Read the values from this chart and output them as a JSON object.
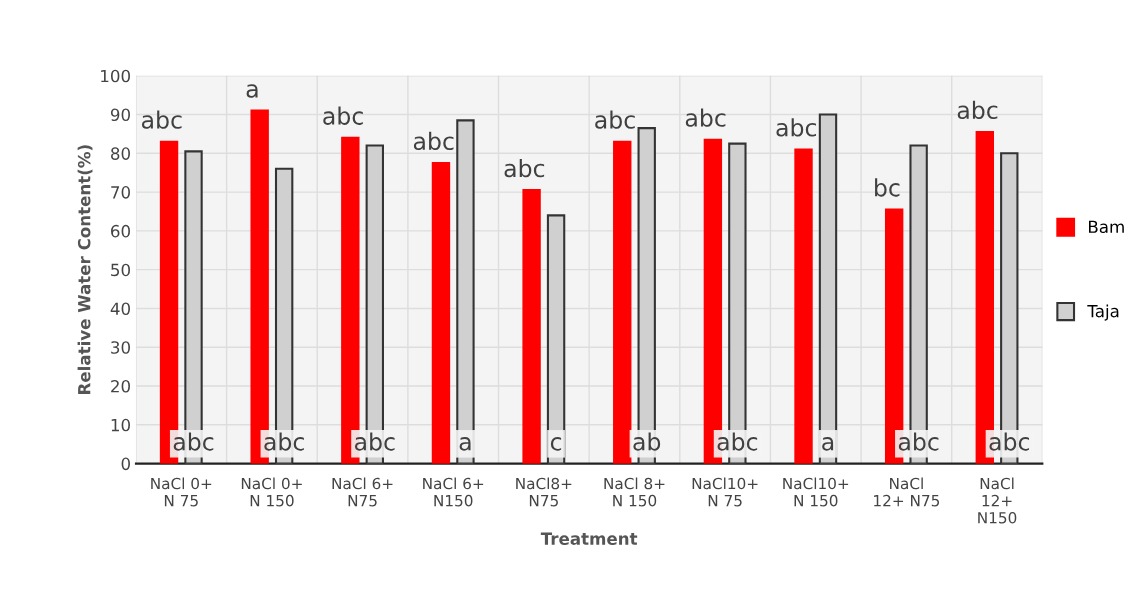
{
  "chart_data": {
    "type": "bar",
    "xlabel": "Treatment",
    "ylabel": "Relative Water Content(%)",
    "categories": [
      "NaCl 0+\nN 75",
      "NaCl 0+\nN 150",
      "NaCl 6+\nN75",
      "NaCl 6+\nN150",
      "NaCl8+\nN75",
      "NaCl 8+\nN 150",
      "NaCl10+\nN 75",
      "NaCl10+\nN 150",
      "NaCl\n12+ N75",
      "NaCl\n12+\nN150"
    ],
    "series": [
      {
        "name": "Bam",
        "color": "#ff0000",
        "values": [
          83,
          91,
          84,
          77.5,
          70.5,
          83,
          83.5,
          81,
          65.5,
          85.5
        ]
      },
      {
        "name": "Taja",
        "color": "#d0d0d0",
        "values": [
          80.5,
          76,
          82,
          88.5,
          64,
          86.5,
          82.5,
          90,
          82,
          80
        ]
      }
    ],
    "ylim": [
      0,
      100
    ],
    "yticks": [
      0,
      10,
      20,
      30,
      40,
      50,
      60,
      70,
      80,
      90,
      100
    ],
    "grid": true,
    "legend": "right",
    "annotations": [
      {
        "text": "abc",
        "x": "NaCl 0+\nN 75",
        "y": 83
      },
      {
        "text": "a",
        "x": "NaCl 0+\nN 150",
        "y": 91
      },
      {
        "text": "abc",
        "x": "NaCl 6+\nN75",
        "y": 84
      },
      {
        "text": "abc",
        "x": "NaCl 6+\nN150",
        "y": 77.5
      },
      {
        "text": "abc",
        "x": "NaCl8+\nN75",
        "y": 70.5
      },
      {
        "text": "abc",
        "x": "NaCl 8+\nN 150",
        "y": 83
      },
      {
        "text": "abc",
        "x": "NaCl10+\nN 75",
        "y": 83.5
      },
      {
        "text": "abc",
        "x": "NaCl10+\nN 150",
        "y": 81
      },
      {
        "text": "bc",
        "x": "NaCl\n12+ N75",
        "y": 65.5
      },
      {
        "text": "abc",
        "x": "NaCl\n12+\nN150",
        "y": 85.5
      },
      {
        "text": "abc",
        "x": "NaCl 0+\nN 75",
        "y": 0
      },
      {
        "text": "abc",
        "x": "NaCl 0+\nN 150",
        "y": 0
      },
      {
        "text": "abc",
        "x": "NaCl 6+\nN75",
        "y": 0
      },
      {
        "text": "a",
        "x": "NaCl 6+\nN150",
        "y": 0
      },
      {
        "text": "c",
        "x": "NaCl8+\nN75",
        "y": 0
      },
      {
        "text": "ab",
        "x": "NaCl 8+\nN 150",
        "y": 0
      },
      {
        "text": "abc",
        "x": "NaCl10+\nN 75",
        "y": 0
      },
      {
        "text": "a",
        "x": "NaCl10+\nN 150",
        "y": 0
      },
      {
        "text": "abc",
        "x": "NaCl\n12+ N75",
        "y": 0
      },
      {
        "text": "abc",
        "x": "NaCl\n12+\nN150",
        "y": 0
      }
    ]
  }
}
